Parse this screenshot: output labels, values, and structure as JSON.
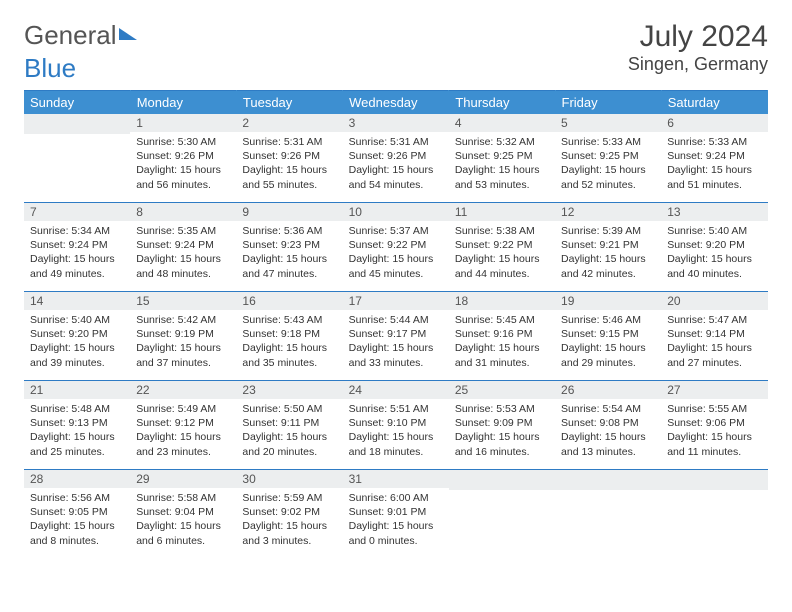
{
  "brand": {
    "part1": "General",
    "part2": "Blue"
  },
  "title": "July 2024",
  "location": "Singen, Germany",
  "day_headers": [
    "Sunday",
    "Monday",
    "Tuesday",
    "Wednesday",
    "Thursday",
    "Friday",
    "Saturday"
  ],
  "colors": {
    "header_bg": "#3d8fd1",
    "rule": "#2e7bc4",
    "daynum_bg": "#eceeef"
  },
  "weeks": [
    [
      null,
      {
        "n": "1",
        "sr": "5:30 AM",
        "ss": "9:26 PM",
        "dl": "15 hours and 56 minutes."
      },
      {
        "n": "2",
        "sr": "5:31 AM",
        "ss": "9:26 PM",
        "dl": "15 hours and 55 minutes."
      },
      {
        "n": "3",
        "sr": "5:31 AM",
        "ss": "9:26 PM",
        "dl": "15 hours and 54 minutes."
      },
      {
        "n": "4",
        "sr": "5:32 AM",
        "ss": "9:25 PM",
        "dl": "15 hours and 53 minutes."
      },
      {
        "n": "5",
        "sr": "5:33 AM",
        "ss": "9:25 PM",
        "dl": "15 hours and 52 minutes."
      },
      {
        "n": "6",
        "sr": "5:33 AM",
        "ss": "9:24 PM",
        "dl": "15 hours and 51 minutes."
      }
    ],
    [
      {
        "n": "7",
        "sr": "5:34 AM",
        "ss": "9:24 PM",
        "dl": "15 hours and 49 minutes."
      },
      {
        "n": "8",
        "sr": "5:35 AM",
        "ss": "9:24 PM",
        "dl": "15 hours and 48 minutes."
      },
      {
        "n": "9",
        "sr": "5:36 AM",
        "ss": "9:23 PM",
        "dl": "15 hours and 47 minutes."
      },
      {
        "n": "10",
        "sr": "5:37 AM",
        "ss": "9:22 PM",
        "dl": "15 hours and 45 minutes."
      },
      {
        "n": "11",
        "sr": "5:38 AM",
        "ss": "9:22 PM",
        "dl": "15 hours and 44 minutes."
      },
      {
        "n": "12",
        "sr": "5:39 AM",
        "ss": "9:21 PM",
        "dl": "15 hours and 42 minutes."
      },
      {
        "n": "13",
        "sr": "5:40 AM",
        "ss": "9:20 PM",
        "dl": "15 hours and 40 minutes."
      }
    ],
    [
      {
        "n": "14",
        "sr": "5:40 AM",
        "ss": "9:20 PM",
        "dl": "15 hours and 39 minutes."
      },
      {
        "n": "15",
        "sr": "5:42 AM",
        "ss": "9:19 PM",
        "dl": "15 hours and 37 minutes."
      },
      {
        "n": "16",
        "sr": "5:43 AM",
        "ss": "9:18 PM",
        "dl": "15 hours and 35 minutes."
      },
      {
        "n": "17",
        "sr": "5:44 AM",
        "ss": "9:17 PM",
        "dl": "15 hours and 33 minutes."
      },
      {
        "n": "18",
        "sr": "5:45 AM",
        "ss": "9:16 PM",
        "dl": "15 hours and 31 minutes."
      },
      {
        "n": "19",
        "sr": "5:46 AM",
        "ss": "9:15 PM",
        "dl": "15 hours and 29 minutes."
      },
      {
        "n": "20",
        "sr": "5:47 AM",
        "ss": "9:14 PM",
        "dl": "15 hours and 27 minutes."
      }
    ],
    [
      {
        "n": "21",
        "sr": "5:48 AM",
        "ss": "9:13 PM",
        "dl": "15 hours and 25 minutes."
      },
      {
        "n": "22",
        "sr": "5:49 AM",
        "ss": "9:12 PM",
        "dl": "15 hours and 23 minutes."
      },
      {
        "n": "23",
        "sr": "5:50 AM",
        "ss": "9:11 PM",
        "dl": "15 hours and 20 minutes."
      },
      {
        "n": "24",
        "sr": "5:51 AM",
        "ss": "9:10 PM",
        "dl": "15 hours and 18 minutes."
      },
      {
        "n": "25",
        "sr": "5:53 AM",
        "ss": "9:09 PM",
        "dl": "15 hours and 16 minutes."
      },
      {
        "n": "26",
        "sr": "5:54 AM",
        "ss": "9:08 PM",
        "dl": "15 hours and 13 minutes."
      },
      {
        "n": "27",
        "sr": "5:55 AM",
        "ss": "9:06 PM",
        "dl": "15 hours and 11 minutes."
      }
    ],
    [
      {
        "n": "28",
        "sr": "5:56 AM",
        "ss": "9:05 PM",
        "dl": "15 hours and 8 minutes."
      },
      {
        "n": "29",
        "sr": "5:58 AM",
        "ss": "9:04 PM",
        "dl": "15 hours and 6 minutes."
      },
      {
        "n": "30",
        "sr": "5:59 AM",
        "ss": "9:02 PM",
        "dl": "15 hours and 3 minutes."
      },
      {
        "n": "31",
        "sr": "6:00 AM",
        "ss": "9:01 PM",
        "dl": "15 hours and 0 minutes."
      },
      null,
      null,
      null
    ]
  ],
  "labels": {
    "sunrise": "Sunrise:",
    "sunset": "Sunset:",
    "daylight": "Daylight:"
  }
}
